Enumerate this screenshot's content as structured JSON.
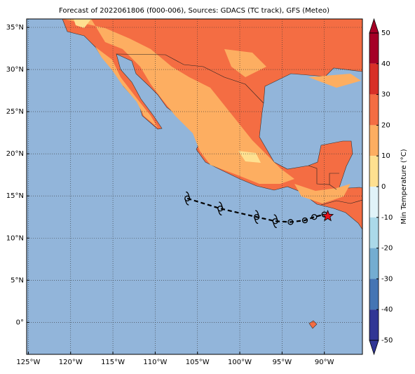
{
  "title": "Forecast of 2022061806 (f000-006), Sources: GDACS (TC track), GFS (Meteo)",
  "map": {
    "lonlim": [
      -125.2,
      -85.5
    ],
    "latlim": [
      -3.8,
      36
    ],
    "xticks": [
      {
        "value": -125,
        "label": "125°W"
      },
      {
        "value": -120,
        "label": "120°W"
      },
      {
        "value": -115,
        "label": "115°W"
      },
      {
        "value": -110,
        "label": "110°W"
      },
      {
        "value": -105,
        "label": "105°W"
      },
      {
        "value": -100,
        "label": "100°W"
      },
      {
        "value": -95,
        "label": "95°W"
      },
      {
        "value": -90,
        "label": "90°W"
      }
    ],
    "yticks": [
      {
        "value": 35,
        "label": "35°N"
      },
      {
        "value": 30,
        "label": "30°N"
      },
      {
        "value": 25,
        "label": "25°N"
      },
      {
        "value": 20,
        "label": "20°N"
      },
      {
        "value": 15,
        "label": "15°N"
      },
      {
        "value": 10,
        "label": "10°N"
      },
      {
        "value": 5,
        "label": "5°N"
      },
      {
        "value": 0,
        "label": "0°"
      }
    ]
  },
  "colorbar": {
    "label": "Min Temperature (°C)",
    "lim": [
      -50,
      50
    ],
    "ticks": [
      50,
      40,
      30,
      20,
      10,
      0,
      -10,
      -20,
      -30,
      -40,
      -50
    ],
    "colors": [
      "#a50026",
      "#d73027",
      "#f46d43",
      "#fdae61",
      "#fee090",
      "#e0f3f8",
      "#abd9e9",
      "#74add1",
      "#4575b4",
      "#313695"
    ]
  },
  "track": {
    "lon": [
      -106.2,
      -102.3,
      -98,
      -95.8,
      -94,
      -92.3,
      -91.2,
      -90
    ],
    "lat": [
      14.7,
      13.5,
      12.5,
      12,
      11.9,
      12.1,
      12.5,
      12.8
    ],
    "current": {
      "lon": -89.6,
      "lat": 12.6
    }
  }
}
